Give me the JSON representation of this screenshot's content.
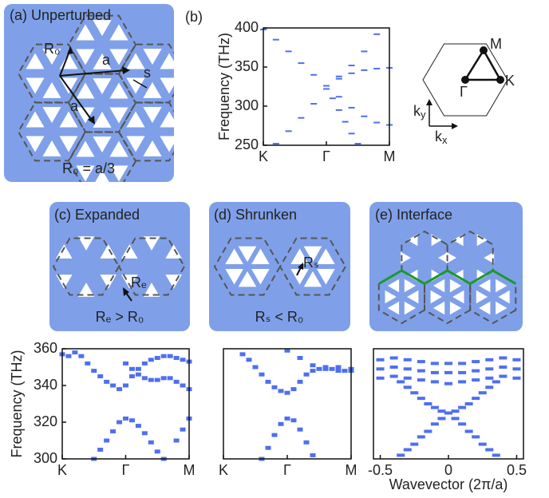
{
  "panels": {
    "a": {
      "label": "(a) Unperturbed",
      "r0": "R₀",
      "a1": "a",
      "a2": "a",
      "s": "s",
      "caption": "R₀ = a/3"
    },
    "bz": {
      "gamma": "Γ",
      "m": "M",
      "k": "K",
      "kx": {
        "base": "k",
        "sub": "x"
      },
      "ky": {
        "base": "k",
        "sub": "y"
      }
    },
    "c": {
      "label": "(c) Expanded",
      "r": "Rₑ",
      "caption": "Rₑ > R₀"
    },
    "d": {
      "label": "(d) Shrunken",
      "r": "Rₛ",
      "caption": "Rₛ < R₀"
    },
    "e": {
      "label": "(e) Interface"
    }
  },
  "chart_data": [
    {
      "type": "scatter",
      "title": "(b)",
      "y_label": "Frequency (THz)",
      "color": "#4f6ff0",
      "xlim": [
        0,
        2
      ],
      "ylim": [
        250,
        400
      ],
      "xticks": [
        {
          "value": 0,
          "label": "K"
        },
        {
          "value": 1,
          "label": "Γ"
        },
        {
          "value": 2,
          "label": "M"
        }
      ],
      "yticks": [
        250,
        300,
        350,
        400
      ],
      "series": [
        {
          "x": [
            0,
            0.2,
            0.4,
            0.6,
            0.8,
            1.0,
            1.2,
            1.4,
            1.6,
            1.8,
            2.0
          ],
          "values": [
            398,
            385,
            370,
            355,
            340,
            326,
            312,
            298,
            287,
            279,
            276
          ]
        },
        {
          "x": [
            0.2,
            0.4,
            0.6,
            0.8,
            1.0,
            1.2,
            1.4,
            1.6,
            1.8
          ],
          "values": [
            252,
            268,
            285,
            303,
            322,
            338,
            352,
            370,
            392
          ]
        },
        {
          "x": [
            1.2,
            1.4,
            1.6,
            1.8,
            2.0
          ],
          "values": [
            335,
            342,
            346,
            348,
            349
          ]
        },
        {
          "x": [
            1.1,
            1.2,
            1.3,
            1.4,
            1.5
          ],
          "values": [
            310,
            295,
            280,
            265,
            252
          ]
        }
      ]
    },
    {
      "type": "scatter",
      "y_label": "Frequency (THz)",
      "color": "#4f6ff0",
      "xlim": [
        0,
        2
      ],
      "ylim": [
        300,
        360
      ],
      "xticks": [
        {
          "value": 0,
          "label": "K"
        },
        {
          "value": 1,
          "label": "Γ"
        },
        {
          "value": 2,
          "label": "M"
        }
      ],
      "yticks": [
        300,
        320,
        340,
        360
      ],
      "series": [
        {
          "x": [
            0,
            0.1,
            0.2,
            0.3,
            0.4,
            0.5,
            0.6,
            0.7,
            0.8,
            0.9,
            1.0,
            1.1,
            1.2,
            1.3,
            1.4,
            1.5,
            1.6,
            1.7,
            1.8,
            1.9,
            2.0
          ],
          "values": [
            357,
            356,
            358,
            356,
            352,
            348,
            345,
            342,
            340,
            338,
            340,
            345,
            349,
            352,
            354,
            355,
            356,
            356,
            355,
            354,
            353
          ]
        },
        {
          "x": [
            1.0,
            1.1,
            1.2,
            1.3,
            1.4,
            1.5,
            1.6,
            1.7,
            1.8,
            1.9,
            2.0
          ],
          "values": [
            352,
            349,
            346,
            344,
            343,
            343,
            344,
            344,
            342,
            340,
            338
          ]
        },
        {
          "x": [
            0.5,
            0.6,
            0.7,
            0.8,
            0.9,
            1.0,
            1.1,
            1.2,
            1.3,
            1.4,
            1.5,
            1.6,
            1.8,
            1.9,
            2.0
          ],
          "values": [
            300,
            305,
            310,
            315,
            320,
            322,
            321,
            318,
            314,
            309,
            304,
            300,
            310,
            316,
            322
          ]
        }
      ]
    },
    {
      "type": "scatter",
      "color": "#4f6ff0",
      "xlim": [
        0,
        2
      ],
      "ylim": [
        300,
        360
      ],
      "xticks": [
        {
          "value": 0,
          "label": "K"
        },
        {
          "value": 1,
          "label": "Γ"
        },
        {
          "value": 2,
          "label": "M"
        }
      ],
      "series": [
        {
          "x": [
            0.3,
            0.4,
            0.5,
            0.6,
            0.7,
            0.8,
            0.9,
            1.0,
            1.1,
            1.2,
            1.3,
            1.4,
            1.5,
            1.6,
            1.7,
            1.8,
            1.9,
            2.0
          ],
          "values": [
            357,
            354,
            350,
            346,
            342,
            339,
            337,
            336,
            338,
            342,
            346,
            348,
            349,
            349,
            349,
            348,
            348,
            348
          ]
        },
        {
          "x": [
            1.0,
            1.2,
            1.4,
            1.6,
            1.8,
            2.0
          ],
          "values": [
            359,
            355,
            351,
            350,
            350,
            349
          ]
        },
        {
          "x": [
            0.6,
            0.7,
            0.8,
            0.9,
            1.0,
            1.1,
            1.2,
            1.3,
            1.4
          ],
          "values": [
            300,
            306,
            313,
            319,
            322,
            321,
            316,
            309,
            302
          ]
        }
      ]
    },
    {
      "type": "scatter",
      "x_label": "Wavevector (2π/a)",
      "color": "#4f6ff0",
      "xlim": [
        -0.55,
        0.55
      ],
      "ylim": [
        300,
        360
      ],
      "xticks": [
        -0.5,
        0,
        0.5
      ],
      "series": [
        {
          "x": [
            -0.5,
            -0.4,
            -0.3,
            -0.2,
            -0.1,
            0,
            0.1,
            0.2,
            0.3,
            0.4,
            0.5
          ],
          "values": [
            354,
            355,
            354,
            353,
            352,
            352,
            352,
            353,
            354,
            355,
            354
          ]
        },
        {
          "x": [
            -0.5,
            -0.4,
            -0.3,
            -0.2,
            -0.1,
            0,
            0.1,
            0.2,
            0.3,
            0.4,
            0.5
          ],
          "values": [
            349,
            350,
            349,
            348,
            347,
            347,
            347,
            348,
            349,
            350,
            349
          ]
        },
        {
          "x": [
            -0.5,
            -0.4,
            -0.3,
            -0.2,
            -0.1,
            0,
            0.1,
            0.2,
            0.3,
            0.4,
            0.5
          ],
          "values": [
            344,
            345,
            344,
            343,
            342,
            341,
            342,
            343,
            344,
            345,
            344
          ]
        },
        {
          "x": [
            -0.35,
            -0.3,
            -0.25,
            -0.2,
            -0.15,
            -0.1,
            -0.05,
            0,
            0.05,
            0.1,
            0.15,
            0.2,
            0.25,
            0.3,
            0.35
          ],
          "values": [
            342,
            339,
            336,
            333,
            330,
            328,
            326,
            325,
            326,
            328,
            330,
            333,
            336,
            339,
            342
          ]
        },
        {
          "x": [
            -0.35,
            -0.3,
            -0.25,
            -0.2,
            -0.15,
            -0.1,
            -0.05,
            0,
            0.05,
            0.1,
            0.15,
            0.2,
            0.25,
            0.3,
            0.35
          ],
          "values": [
            302,
            305,
            308,
            312,
            315,
            319,
            322,
            325,
            322,
            319,
            315,
            312,
            308,
            305,
            302
          ]
        }
      ]
    }
  ]
}
